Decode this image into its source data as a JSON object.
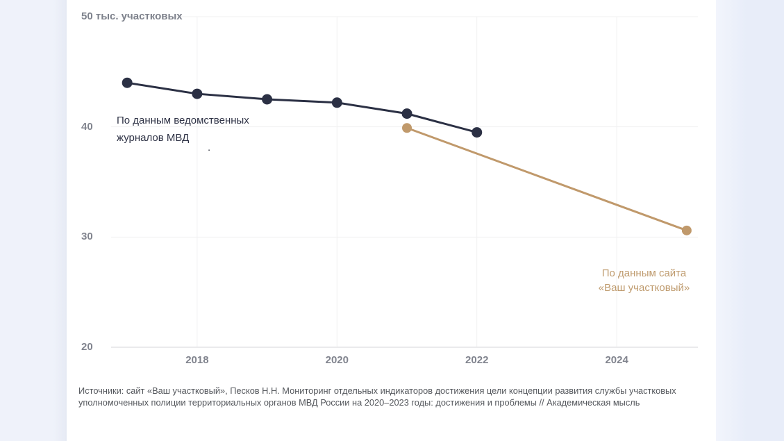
{
  "page": {
    "left_strip_color": "#eff2fa",
    "right_strip_color": "#e8edf9"
  },
  "chart_data": {
    "type": "line",
    "title": "",
    "y_axis_title": "50 тыс. участковых",
    "xlabel": "",
    "ylabel": "тыс. участковых",
    "xlim": [
      2016.77,
      2025.16
    ],
    "ylim": [
      20,
      50
    ],
    "grid": true,
    "grid_color": "#f0f0f1",
    "axis_color": "#e4e4e6",
    "grid_y_values": [
      30,
      40,
      50
    ],
    "y_ticks": [
      {
        "value": 40,
        "label": "40"
      },
      {
        "value": 30,
        "label": "30"
      },
      {
        "value": 20,
        "label": "20"
      }
    ],
    "x_ticks": [
      {
        "value": 2018,
        "label": "2018"
      },
      {
        "value": 2020,
        "label": "2020"
      },
      {
        "value": 2022,
        "label": "2022"
      },
      {
        "value": 2024,
        "label": "2024"
      }
    ],
    "series": [
      {
        "name": "mvd-journals",
        "label": "По данным ведомственных журналов МВД",
        "color": "#2b3044",
        "line_width": 3,
        "point_radius": 7.5,
        "x": [
          2017,
          2018,
          2019,
          2020,
          2021,
          2022
        ],
        "values": [
          44.0,
          43.0,
          42.5,
          42.2,
          41.2,
          39.5
        ]
      },
      {
        "name": "vash-uchastkovy-site",
        "label": "По данным сайта «Ваш участковый»",
        "color": "#c0996b",
        "line_width": 3,
        "point_radius": 7,
        "x": [
          2021,
          2025
        ],
        "values": [
          39.9,
          30.6
        ]
      }
    ],
    "annotations": {
      "mvd_label_line1": "По данным ведомственных",
      "mvd_label_line2": "журналов МВД",
      "site_label_line1": "По данным сайта",
      "site_label_line2": "«Ваш участковый»",
      "stray_dot": "."
    },
    "legend_position": "inline-annotations"
  },
  "source": {
    "line1": "Источники: сайт «Ваш участковый», Песков Н.Н. Мониторинг отдельных индикаторов достижения цели концепции развития службы участковых",
    "line2": "уполномоченных полиции территориальных органов МВД России на 2020–2023 годы: достижения и проблемы // Академическая мысль"
  }
}
